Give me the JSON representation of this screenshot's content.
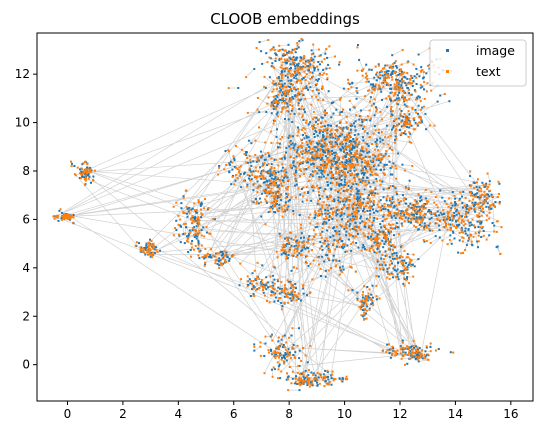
{
  "chart_data": {
    "type": "scatter",
    "title": "CLOOB embeddings",
    "xlabel": "",
    "ylabel": "",
    "xlim": [
      -1.1,
      16.8
    ],
    "ylim": [
      -1.5,
      13.7
    ],
    "xticks": [
      0,
      2,
      4,
      6,
      8,
      10,
      12,
      14,
      16
    ],
    "yticks": [
      0,
      2,
      4,
      6,
      8,
      10,
      12
    ],
    "grid": false,
    "legend": "top-right",
    "colors": {
      "image": "#1f77b4",
      "text": "#ff7f0e",
      "lines": "#000000"
    },
    "series": [
      {
        "name": "image",
        "marker": "point",
        "color": "#1f77b4"
      },
      {
        "name": "text",
        "marker": "point",
        "color": "#ff7f0e"
      }
    ],
    "clusters": [
      {
        "x": 8.2,
        "y": 12.2,
        "sx": 0.6,
        "sy": 0.5,
        "n": 160
      },
      {
        "x": 7.8,
        "y": 10.9,
        "sx": 0.4,
        "sy": 0.3,
        "n": 60
      },
      {
        "x": 11.9,
        "y": 11.6,
        "sx": 0.7,
        "sy": 0.5,
        "n": 150
      },
      {
        "x": 12.3,
        "y": 10.0,
        "sx": 0.3,
        "sy": 0.3,
        "n": 50
      },
      {
        "x": 9.5,
        "y": 9.0,
        "sx": 0.9,
        "sy": 0.9,
        "n": 330
      },
      {
        "x": 10.6,
        "y": 8.2,
        "sx": 0.8,
        "sy": 0.6,
        "n": 150
      },
      {
        "x": 7.0,
        "y": 8.0,
        "sx": 0.6,
        "sy": 0.5,
        "n": 120
      },
      {
        "x": 7.6,
        "y": 6.9,
        "sx": 0.4,
        "sy": 0.4,
        "n": 60
      },
      {
        "x": 12.5,
        "y": 6.3,
        "sx": 0.6,
        "sy": 0.4,
        "n": 130
      },
      {
        "x": 14.3,
        "y": 6.0,
        "sx": 0.6,
        "sy": 0.5,
        "n": 110
      },
      {
        "x": 15.0,
        "y": 6.9,
        "sx": 0.3,
        "sy": 0.3,
        "n": 50
      },
      {
        "x": 0.6,
        "y": 7.9,
        "sx": 0.15,
        "sy": 0.2,
        "n": 40
      },
      {
        "x": -0.1,
        "y": 6.1,
        "sx": 0.15,
        "sy": 0.1,
        "n": 35
      },
      {
        "x": 4.5,
        "y": 5.8,
        "sx": 0.3,
        "sy": 0.6,
        "n": 70
      },
      {
        "x": 5.4,
        "y": 4.4,
        "sx": 0.3,
        "sy": 0.2,
        "n": 40
      },
      {
        "x": 2.9,
        "y": 4.8,
        "sx": 0.2,
        "sy": 0.15,
        "n": 35
      },
      {
        "x": 6.9,
        "y": 3.3,
        "sx": 0.3,
        "sy": 0.3,
        "n": 40
      },
      {
        "x": 8.0,
        "y": 3.0,
        "sx": 0.3,
        "sy": 0.3,
        "n": 40
      },
      {
        "x": 8.1,
        "y": 4.9,
        "sx": 0.3,
        "sy": 0.3,
        "n": 40
      },
      {
        "x": 9.6,
        "y": 5.3,
        "sx": 0.6,
        "sy": 0.8,
        "n": 110
      },
      {
        "x": 10.8,
        "y": 2.6,
        "sx": 0.2,
        "sy": 0.3,
        "n": 40
      },
      {
        "x": 11.3,
        "y": 5.2,
        "sx": 0.3,
        "sy": 0.3,
        "n": 45
      },
      {
        "x": 12.0,
        "y": 4.1,
        "sx": 0.4,
        "sy": 0.3,
        "n": 55
      },
      {
        "x": 7.8,
        "y": 0.5,
        "sx": 0.4,
        "sy": 0.4,
        "n": 55
      },
      {
        "x": 8.9,
        "y": -0.6,
        "sx": 0.5,
        "sy": 0.15,
        "n": 70
      },
      {
        "x": 12.4,
        "y": 0.5,
        "sx": 0.4,
        "sy": 0.2,
        "n": 70
      },
      {
        "x": 10.5,
        "y": 6.5,
        "sx": 0.6,
        "sy": 0.6,
        "n": 110
      }
    ]
  }
}
